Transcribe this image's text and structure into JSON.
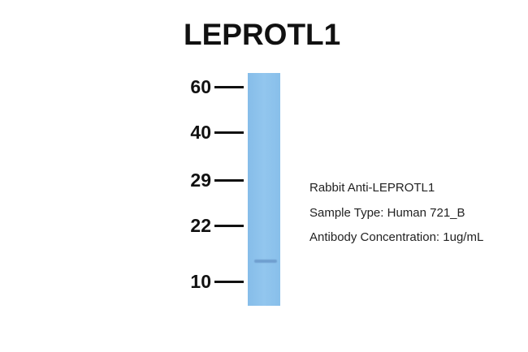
{
  "title": "LEPROTL1",
  "markers": [
    "60",
    "40",
    "29",
    "22",
    "10"
  ],
  "lane_color": "#8fc3ec",
  "info": {
    "antibody": "Rabbit Anti-LEPROTL1",
    "sample": "Sample Type: Human 721_B",
    "concentration": "Antibody Concentration: 1ug/mL"
  }
}
